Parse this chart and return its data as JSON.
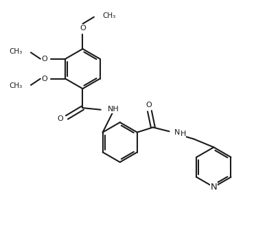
{
  "bg": "#ffffff",
  "lc": "#1a1a1a",
  "lw": 1.5,
  "fs": 8.0,
  "figsize": [
    3.89,
    3.32
  ],
  "dpi": 100,
  "xlim": [
    -1.0,
    10.5
  ],
  "ylim": [
    -0.5,
    9.5
  ]
}
